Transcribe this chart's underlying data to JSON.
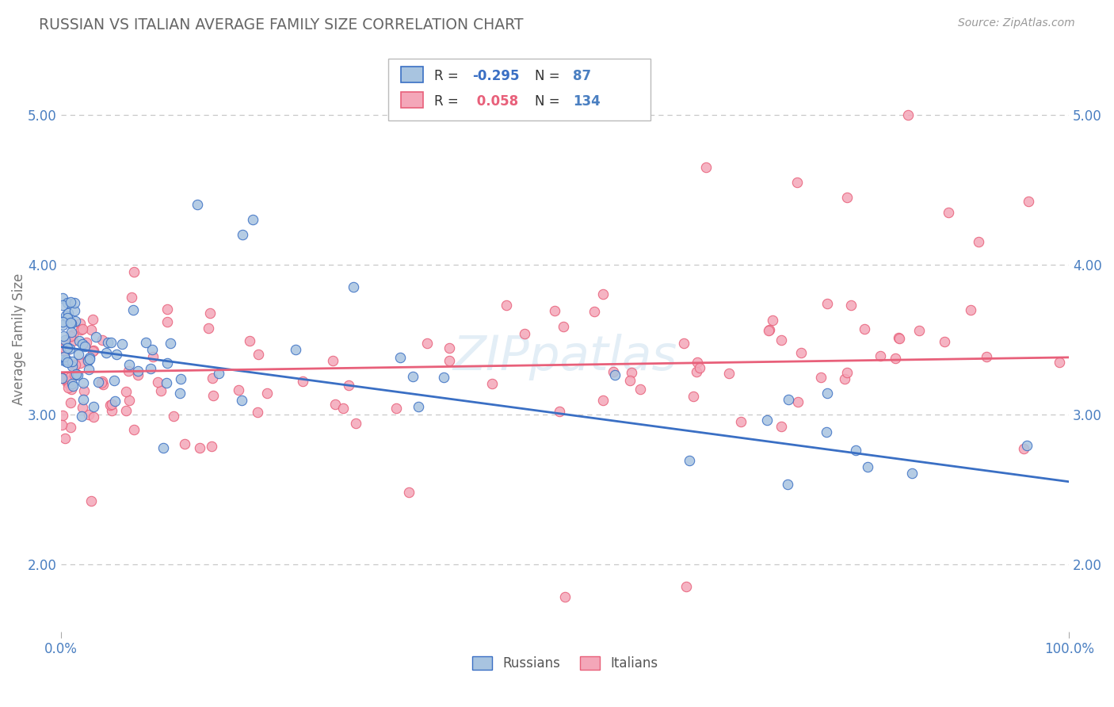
{
  "title": "RUSSIAN VS ITALIAN AVERAGE FAMILY SIZE CORRELATION CHART",
  "source_text": "Source: ZipAtlas.com",
  "ylabel": "Average Family Size",
  "xlim": [
    0.0,
    1.0
  ],
  "ylim": [
    1.55,
    5.45
  ],
  "yticks": [
    2.0,
    3.0,
    4.0,
    5.0
  ],
  "russian_color": "#a8c4e0",
  "italian_color": "#f4a7b9",
  "russian_line_color": "#3a6fc4",
  "italian_line_color": "#e8607a",
  "russian_R": -0.295,
  "russian_N": 87,
  "italian_R": 0.058,
  "italian_N": 134,
  "background_color": "#ffffff",
  "grid_color": "#c8c8c8",
  "title_color": "#666666",
  "axis_label_color": "#4a7fc1",
  "russian_seed": 101,
  "italian_seed": 202
}
